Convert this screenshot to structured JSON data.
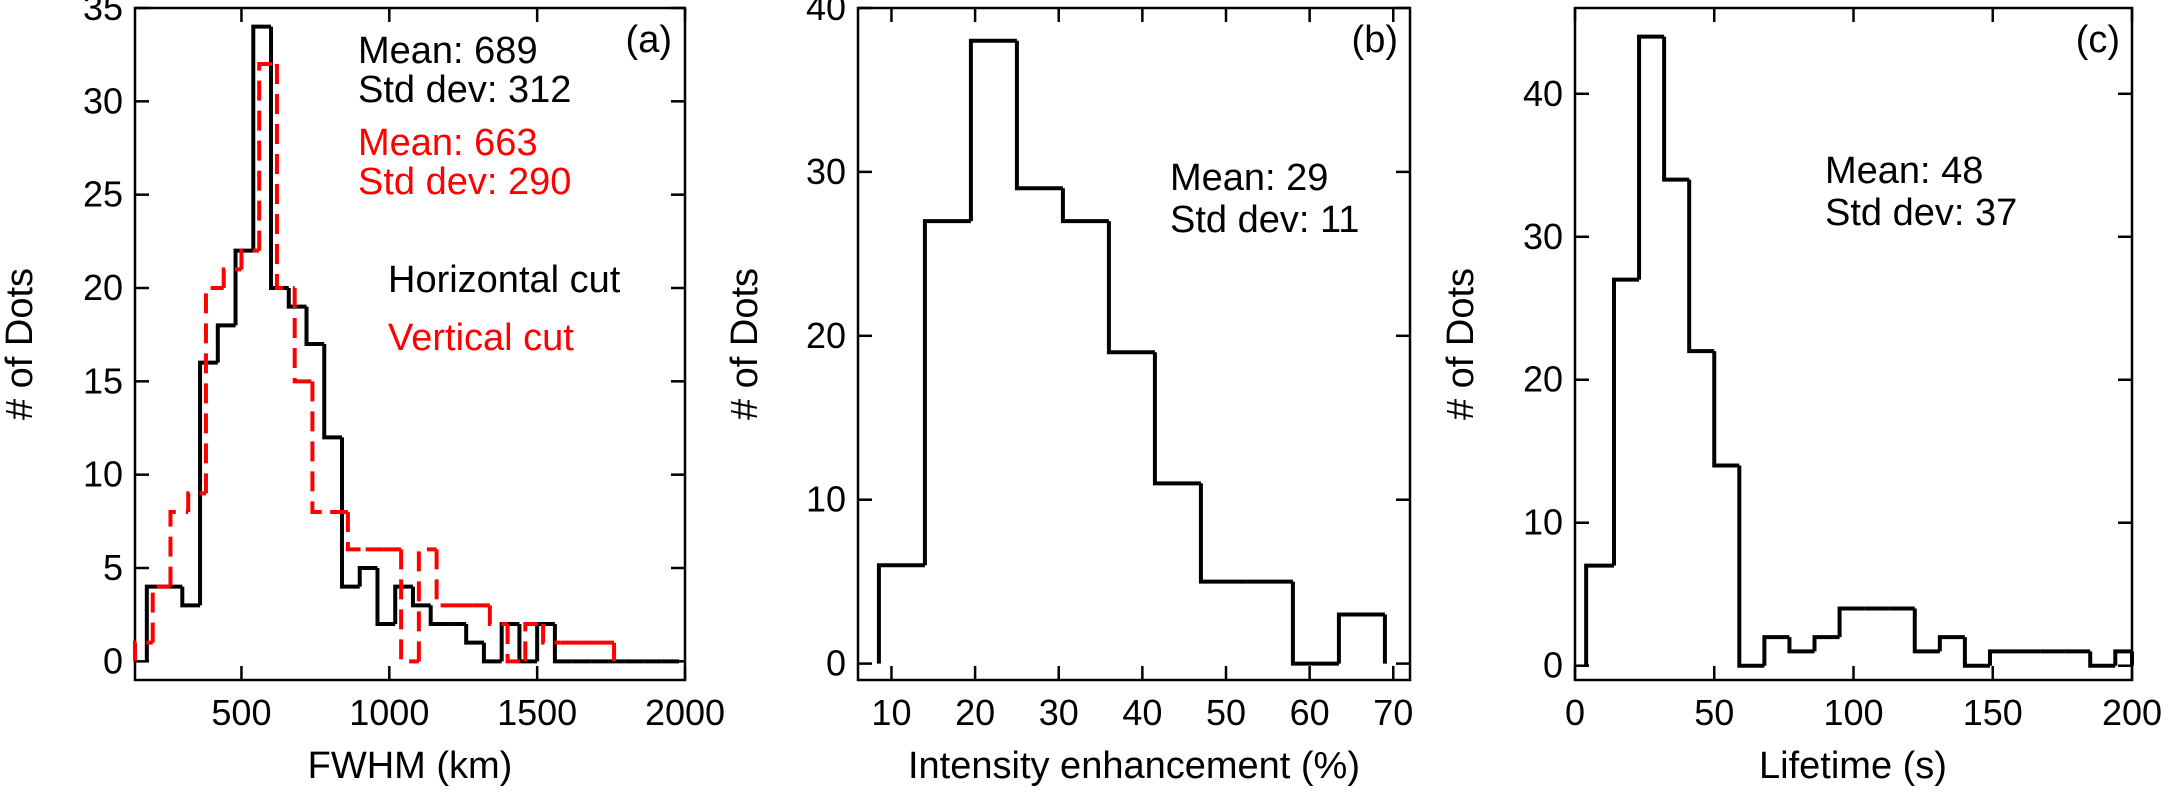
{
  "chart_data": [
    {
      "type": "histogram",
      "panel_label": "(a)",
      "xlabel": "FWHM (km)",
      "ylabel": "# of Dots",
      "xlim": [
        140,
        2000
      ],
      "ylim": [
        -1,
        35
      ],
      "xticks": [
        500,
        1000,
        1500,
        2000
      ],
      "yticks": [
        0,
        5,
        10,
        15,
        20,
        25,
        30,
        35
      ],
      "series": [
        {
          "name": "Horizontal cut",
          "color": "#000000",
          "style": "solid",
          "edges": [
            180,
            240,
            300,
            360,
            420,
            480,
            540,
            600,
            660,
            720,
            780,
            840,
            900,
            960,
            1020,
            1080,
            1140,
            1200,
            1260,
            1320,
            1380,
            1440,
            1500,
            1560,
            1620,
            1680,
            1740,
            1800,
            1860,
            1920,
            1980
          ],
          "counts": [
            4,
            4,
            3,
            16,
            18,
            22,
            34,
            20,
            19,
            17,
            12,
            4,
            5,
            2,
            4,
            3,
            2,
            2,
            1,
            0,
            2,
            0,
            2,
            0,
            0,
            0,
            0,
            0,
            0,
            0
          ]
        },
        {
          "name": "Vertical cut",
          "color": "#ff0000",
          "style": "dashed",
          "edges": [
            140,
            200,
            260,
            320,
            380,
            440,
            500,
            560,
            620,
            680,
            740,
            800,
            860,
            920,
            980,
            1040,
            1100,
            1160,
            1220,
            1280,
            1340,
            1400,
            1460,
            1520,
            1580,
            1640,
            1700,
            1760
          ],
          "counts": [
            1,
            4,
            8,
            9,
            20,
            21,
            22,
            32,
            20,
            15,
            8,
            8,
            6,
            6,
            6,
            0,
            6,
            3,
            3,
            3,
            2,
            0,
            2,
            1,
            1,
            1,
            1
          ]
        }
      ],
      "annotations": [
        {
          "text": "Mean: 689",
          "color": "#000000"
        },
        {
          "text": "Std dev: 312",
          "color": "#000000"
        },
        {
          "text": "Mean: 663",
          "color": "#ff0000"
        },
        {
          "text": "Std dev: 290",
          "color": "#ff0000"
        },
        {
          "text": "Horizontal cut",
          "color": "#000000"
        },
        {
          "text": "Vertical cut",
          "color": "#ff0000"
        }
      ]
    },
    {
      "type": "histogram",
      "panel_label": "(b)",
      "xlabel": "Intensity enhancement (%)",
      "ylabel": "# of Dots",
      "xlim": [
        6,
        72
      ],
      "ylim": [
        -1,
        40
      ],
      "xticks": [
        10,
        20,
        30,
        40,
        50,
        60,
        70
      ],
      "yticks": [
        0,
        10,
        20,
        30,
        40
      ],
      "series": [
        {
          "name": "Intensity enhancement",
          "color": "#000000",
          "style": "solid",
          "edges": [
            8.5,
            14,
            19.5,
            25,
            30.5,
            36,
            41.5,
            47,
            52.5,
            58,
            63.5,
            69
          ],
          "counts": [
            6,
            27,
            38,
            29,
            27,
            19,
            11,
            5,
            5,
            0,
            3
          ]
        }
      ],
      "annotations": [
        {
          "text": "Mean: 29",
          "color": "#000000"
        },
        {
          "text": "Std dev: 11",
          "color": "#000000"
        }
      ]
    },
    {
      "type": "histogram",
      "panel_label": "(c)",
      "xlabel": "Lifetime (s)",
      "ylabel": "# of Dots",
      "xlim": [
        0,
        200
      ],
      "ylim": [
        -1,
        46
      ],
      "xticks": [
        0,
        50,
        100,
        150,
        200
      ],
      "yticks": [
        0,
        10,
        20,
        30,
        40
      ],
      "series": [
        {
          "name": "Lifetime",
          "color": "#000000",
          "style": "solid",
          "edges": [
            4,
            14,
            23,
            32,
            41,
            50,
            59,
            68,
            77,
            86,
            95,
            104,
            113,
            122,
            131,
            140,
            149,
            158,
            167,
            176,
            185,
            194,
            200
          ],
          "counts": [
            7,
            27,
            44,
            34,
            22,
            14,
            0,
            2,
            1,
            2,
            4,
            4,
            4,
            1,
            2,
            0,
            1,
            1,
            1,
            1,
            0,
            1
          ]
        }
      ],
      "annotations": [
        {
          "text": "Mean: 48",
          "color": "#000000"
        },
        {
          "text": "Std dev: 37",
          "color": "#000000"
        }
      ]
    }
  ]
}
